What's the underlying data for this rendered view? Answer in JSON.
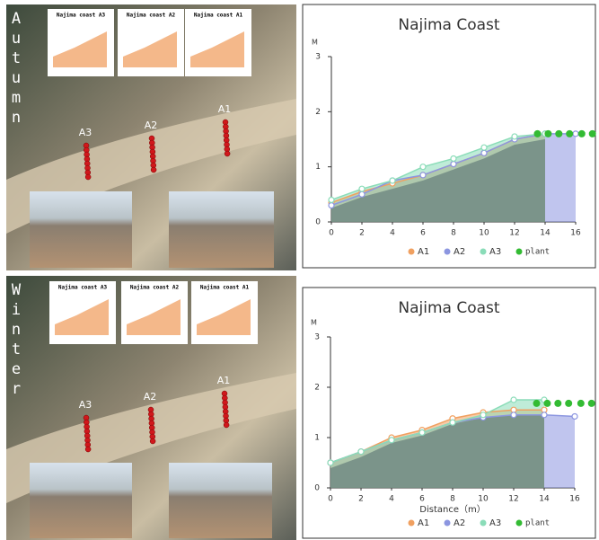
{
  "photos": [
    {
      "season": "Autumn",
      "mini_titles": [
        "Najima coast A3",
        "Najima coast A2",
        "Najima coast A1"
      ],
      "points": [
        "A3",
        "A2",
        "A1"
      ]
    },
    {
      "season": "Winter",
      "mini_titles": [
        "Najima coast A3",
        "Najima coast A2",
        "Najima coast A1"
      ],
      "points": [
        "A3",
        "A2",
        "A1"
      ]
    }
  ],
  "chart_data": [
    {
      "type": "area",
      "title": "Najima Coast",
      "y_label": "M",
      "xlim": [
        0,
        16
      ],
      "xticks": [
        0,
        2,
        4,
        6,
        8,
        10,
        12,
        14,
        16
      ],
      "ylim": [
        0,
        3
      ],
      "yticks": [
        0,
        1,
        2,
        3
      ],
      "series": [
        {
          "name": "A1",
          "color": "#f0a060",
          "x": [
            0,
            2,
            4,
            6,
            8,
            10,
            12,
            14
          ],
          "values": [
            0.35,
            0.55,
            0.7,
            0.85,
            1.05,
            1.25,
            1.5,
            1.6
          ]
        },
        {
          "name": "A2",
          "color": "#8c96e0",
          "x": [
            0,
            2,
            4,
            6,
            8,
            10,
            12,
            14,
            16
          ],
          "values": [
            0.3,
            0.5,
            0.75,
            0.85,
            1.05,
            1.25,
            1.5,
            1.6,
            1.6
          ]
        },
        {
          "name": "A3",
          "color": "#8adcb8",
          "x": [
            0,
            2,
            4,
            6,
            8,
            10,
            12,
            14
          ],
          "values": [
            0.4,
            0.6,
            0.75,
            1.0,
            1.15,
            1.35,
            1.55,
            1.6
          ]
        },
        {
          "name": "plant",
          "color": "#33bb33",
          "x": [
            13.5,
            14.2,
            14.9,
            15.6,
            16.4,
            17.1
          ],
          "values": [
            1.6,
            1.6,
            1.6,
            1.6,
            1.6,
            1.6
          ]
        }
      ]
    },
    {
      "type": "area",
      "title": "Najima Coast",
      "y_label": "M",
      "x_label": "Distance（m）",
      "xlim": [
        0,
        16
      ],
      "xticks": [
        0,
        2,
        4,
        6,
        8,
        10,
        12,
        14,
        16
      ],
      "ylim": [
        0,
        3
      ],
      "yticks": [
        0,
        1,
        2,
        3
      ],
      "series": [
        {
          "name": "A1",
          "color": "#f0a060",
          "x": [
            0,
            2,
            4,
            6,
            8,
            10,
            12,
            14
          ],
          "values": [
            0.5,
            0.72,
            1.0,
            1.15,
            1.38,
            1.5,
            1.55,
            1.55
          ]
        },
        {
          "name": "A2",
          "color": "#8c96e0",
          "x": [
            0,
            2,
            4,
            6,
            8,
            10,
            12,
            14,
            16
          ],
          "values": [
            0.5,
            0.72,
            0.95,
            1.1,
            1.3,
            1.4,
            1.45,
            1.45,
            1.42
          ]
        },
        {
          "name": "A3",
          "color": "#8adcb8",
          "x": [
            0,
            2,
            4,
            6,
            8,
            10,
            12,
            14
          ],
          "values": [
            0.5,
            0.72,
            0.95,
            1.1,
            1.3,
            1.45,
            1.75,
            1.75
          ]
        },
        {
          "name": "plant",
          "color": "#33bb33",
          "x": [
            13.5,
            14.2,
            14.9,
            15.6,
            16.4,
            17.1
          ],
          "values": [
            1.68,
            1.68,
            1.68,
            1.68,
            1.68,
            1.68
          ]
        }
      ]
    }
  ]
}
